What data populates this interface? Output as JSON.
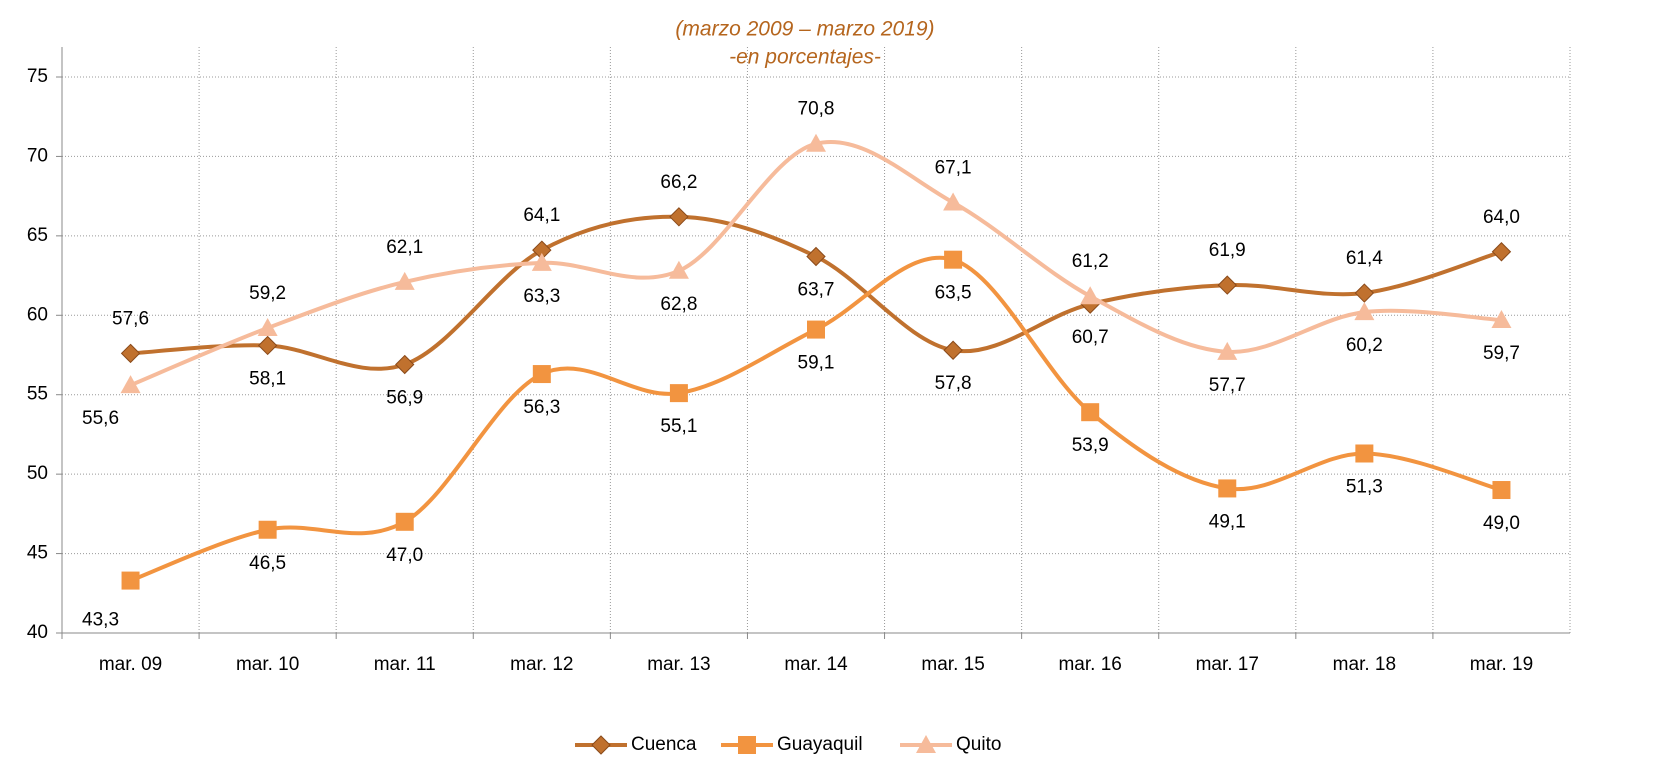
{
  "chart_data": {
    "type": "line",
    "title": "(marzo 2009 – marzo 2019)",
    "subtitle": "-en porcentajes-",
    "categories": [
      "mar. 09",
      "mar. 10",
      "mar. 11",
      "mar. 12",
      "mar. 13",
      "mar. 14",
      "mar. 15",
      "mar. 16",
      "mar. 17",
      "mar. 18",
      "mar. 19"
    ],
    "series": [
      {
        "name": "Cuenca",
        "color": "#c0712e",
        "marker": "diamond",
        "values": [
          57.6,
          58.1,
          56.9,
          64.1,
          66.2,
          63.7,
          57.8,
          60.7,
          61.9,
          61.4,
          64.0
        ],
        "value_labels": [
          "57,6",
          "58,1",
          "56,9",
          "64,1",
          "66,2",
          "63,7",
          "57,8",
          "60,7",
          "61,9",
          "61,4",
          "64,0"
        ]
      },
      {
        "name": "Guayaquil",
        "color": "#f29440",
        "marker": "square",
        "values": [
          43.3,
          46.5,
          47.0,
          56.3,
          55.1,
          59.1,
          63.5,
          53.9,
          49.1,
          51.3,
          49.0
        ],
        "value_labels": [
          "43,3",
          "46,5",
          "47,0",
          "56,3",
          "55,1",
          "59,1",
          "63,5",
          "53,9",
          "49,1",
          "51,3",
          "49,0"
        ]
      },
      {
        "name": "Quito",
        "color": "#f6bb9b",
        "marker": "triangle",
        "values": [
          55.6,
          59.2,
          62.1,
          63.3,
          62.8,
          70.8,
          67.1,
          61.2,
          57.7,
          60.2,
          59.7
        ],
        "value_labels": [
          "55,6",
          "59,2",
          "62,1",
          "63,3",
          "62,8",
          "70,8",
          "67,1",
          "61,2",
          "57,7",
          "60,2",
          "59,7"
        ]
      }
    ],
    "ylim": [
      40,
      75
    ],
    "yticks": [
      40,
      45,
      50,
      55,
      60,
      65,
      70,
      75
    ],
    "grid": true,
    "legend": "bottom"
  }
}
